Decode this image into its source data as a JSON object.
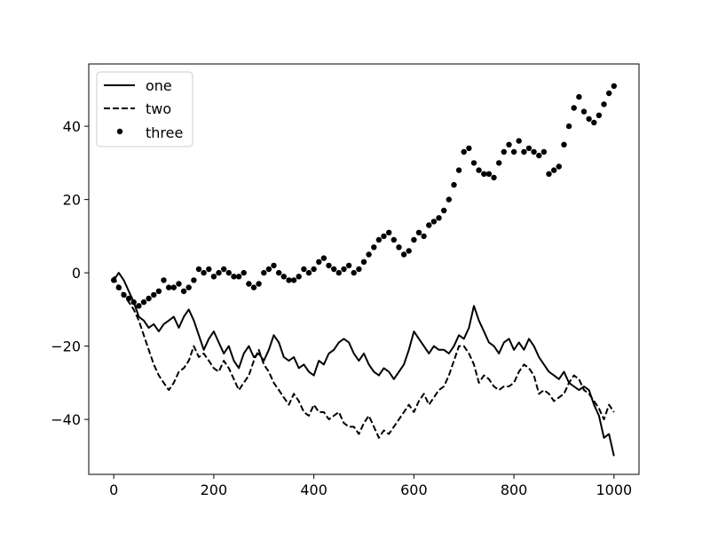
{
  "chart_data": {
    "type": "line",
    "title": "",
    "xlabel": "",
    "ylabel": "",
    "xlim": [
      -50,
      1050
    ],
    "ylim": [
      -55,
      57
    ],
    "x_ticks": [
      0,
      200,
      400,
      600,
      800,
      1000
    ],
    "y_ticks": [
      -40,
      -20,
      0,
      20,
      40
    ],
    "x_tick_labels": [
      "0",
      "200",
      "400",
      "600",
      "800",
      "1000"
    ],
    "y_tick_labels": [
      "−40",
      "−20",
      "0",
      "20",
      "40"
    ],
    "grid": false,
    "legend": {
      "position": "top-left"
    },
    "series": [
      {
        "name": "one",
        "style": "solid",
        "color": "#000000",
        "points": [
          [
            0,
            -2
          ],
          [
            10,
            0
          ],
          [
            20,
            -2
          ],
          [
            30,
            -5
          ],
          [
            40,
            -8
          ],
          [
            50,
            -12
          ],
          [
            60,
            -13
          ],
          [
            70,
            -15
          ],
          [
            80,
            -14
          ],
          [
            90,
            -16
          ],
          [
            100,
            -14
          ],
          [
            110,
            -13
          ],
          [
            120,
            -12
          ],
          [
            130,
            -15
          ],
          [
            140,
            -12
          ],
          [
            150,
            -10
          ],
          [
            160,
            -13
          ],
          [
            170,
            -17
          ],
          [
            180,
            -21
          ],
          [
            190,
            -18
          ],
          [
            200,
            -16
          ],
          [
            210,
            -19
          ],
          [
            220,
            -22
          ],
          [
            230,
            -20
          ],
          [
            240,
            -24
          ],
          [
            250,
            -26
          ],
          [
            260,
            -22
          ],
          [
            270,
            -20
          ],
          [
            280,
            -23
          ],
          [
            290,
            -22
          ],
          [
            300,
            -24
          ],
          [
            310,
            -21
          ],
          [
            320,
            -17
          ],
          [
            330,
            -19
          ],
          [
            340,
            -23
          ],
          [
            350,
            -24
          ],
          [
            360,
            -23
          ],
          [
            370,
            -26
          ],
          [
            380,
            -25
          ],
          [
            390,
            -27
          ],
          [
            400,
            -28
          ],
          [
            410,
            -24
          ],
          [
            420,
            -25
          ],
          [
            430,
            -22
          ],
          [
            440,
            -21
          ],
          [
            450,
            -19
          ],
          [
            460,
            -18
          ],
          [
            470,
            -19
          ],
          [
            480,
            -22
          ],
          [
            490,
            -24
          ],
          [
            500,
            -22
          ],
          [
            510,
            -25
          ],
          [
            520,
            -27
          ],
          [
            530,
            -28
          ],
          [
            540,
            -26
          ],
          [
            550,
            -27
          ],
          [
            560,
            -29
          ],
          [
            570,
            -27
          ],
          [
            580,
            -25
          ],
          [
            590,
            -21
          ],
          [
            600,
            -16
          ],
          [
            610,
            -18
          ],
          [
            620,
            -20
          ],
          [
            630,
            -22
          ],
          [
            640,
            -20
          ],
          [
            650,
            -21
          ],
          [
            660,
            -21
          ],
          [
            670,
            -22
          ],
          [
            680,
            -20
          ],
          [
            690,
            -17
          ],
          [
            700,
            -18
          ],
          [
            710,
            -15
          ],
          [
            720,
            -9
          ],
          [
            730,
            -13
          ],
          [
            740,
            -16
          ],
          [
            750,
            -19
          ],
          [
            760,
            -20
          ],
          [
            770,
            -22
          ],
          [
            780,
            -19
          ],
          [
            790,
            -18
          ],
          [
            800,
            -21
          ],
          [
            810,
            -19
          ],
          [
            820,
            -21
          ],
          [
            830,
            -18
          ],
          [
            840,
            -20
          ],
          [
            850,
            -23
          ],
          [
            860,
            -25
          ],
          [
            870,
            -27
          ],
          [
            880,
            -28
          ],
          [
            890,
            -29
          ],
          [
            900,
            -27
          ],
          [
            910,
            -30
          ],
          [
            920,
            -31
          ],
          [
            930,
            -32
          ],
          [
            940,
            -31
          ],
          [
            950,
            -32
          ],
          [
            960,
            -36
          ],
          [
            970,
            -39
          ],
          [
            980,
            -45
          ],
          [
            990,
            -44
          ],
          [
            1000,
            -50
          ]
        ]
      },
      {
        "name": "two",
        "style": "dashed",
        "color": "#000000",
        "points": [
          [
            0,
            -1
          ],
          [
            10,
            -4
          ],
          [
            20,
            -6
          ],
          [
            30,
            -8
          ],
          [
            40,
            -10
          ],
          [
            50,
            -13
          ],
          [
            60,
            -17
          ],
          [
            70,
            -21
          ],
          [
            80,
            -25
          ],
          [
            90,
            -28
          ],
          [
            100,
            -30
          ],
          [
            110,
            -32
          ],
          [
            120,
            -30
          ],
          [
            130,
            -27
          ],
          [
            140,
            -26
          ],
          [
            150,
            -24
          ],
          [
            160,
            -20
          ],
          [
            170,
            -23
          ],
          [
            180,
            -22
          ],
          [
            190,
            -24
          ],
          [
            200,
            -26
          ],
          [
            210,
            -27
          ],
          [
            220,
            -24
          ],
          [
            230,
            -26
          ],
          [
            240,
            -29
          ],
          [
            250,
            -32
          ],
          [
            260,
            -30
          ],
          [
            270,
            -28
          ],
          [
            280,
            -24
          ],
          [
            290,
            -21
          ],
          [
            300,
            -25
          ],
          [
            310,
            -27
          ],
          [
            320,
            -30
          ],
          [
            330,
            -32
          ],
          [
            340,
            -34
          ],
          [
            350,
            -36
          ],
          [
            360,
            -33
          ],
          [
            370,
            -35
          ],
          [
            380,
            -38
          ],
          [
            390,
            -39
          ],
          [
            400,
            -36
          ],
          [
            410,
            -38
          ],
          [
            420,
            -38
          ],
          [
            430,
            -40
          ],
          [
            440,
            -39
          ],
          [
            450,
            -38
          ],
          [
            460,
            -41
          ],
          [
            470,
            -42
          ],
          [
            480,
            -42
          ],
          [
            490,
            -44
          ],
          [
            500,
            -41
          ],
          [
            510,
            -39
          ],
          [
            520,
            -42
          ],
          [
            530,
            -45
          ],
          [
            540,
            -43
          ],
          [
            550,
            -44
          ],
          [
            560,
            -42
          ],
          [
            570,
            -40
          ],
          [
            580,
            -38
          ],
          [
            590,
            -36
          ],
          [
            600,
            -38
          ],
          [
            610,
            -35
          ],
          [
            620,
            -33
          ],
          [
            630,
            -36
          ],
          [
            640,
            -34
          ],
          [
            650,
            -32
          ],
          [
            660,
            -31
          ],
          [
            670,
            -28
          ],
          [
            680,
            -24
          ],
          [
            690,
            -20
          ],
          [
            700,
            -20
          ],
          [
            710,
            -22
          ],
          [
            720,
            -25
          ],
          [
            730,
            -30
          ],
          [
            740,
            -28
          ],
          [
            750,
            -29
          ],
          [
            760,
            -31
          ],
          [
            770,
            -32
          ],
          [
            780,
            -31
          ],
          [
            790,
            -31
          ],
          [
            800,
            -30
          ],
          [
            810,
            -27
          ],
          [
            820,
            -25
          ],
          [
            830,
            -26
          ],
          [
            840,
            -28
          ],
          [
            850,
            -33
          ],
          [
            860,
            -32
          ],
          [
            870,
            -33
          ],
          [
            880,
            -35
          ],
          [
            890,
            -34
          ],
          [
            900,
            -33
          ],
          [
            910,
            -30
          ],
          [
            920,
            -28
          ],
          [
            930,
            -29
          ],
          [
            940,
            -32
          ],
          [
            950,
            -33
          ],
          [
            960,
            -35
          ],
          [
            970,
            -37
          ],
          [
            980,
            -40
          ],
          [
            990,
            -36
          ],
          [
            1000,
            -38
          ]
        ]
      },
      {
        "name": "three",
        "style": "dots",
        "color": "#000000",
        "points": [
          [
            0,
            -2
          ],
          [
            10,
            -4
          ],
          [
            20,
            -6
          ],
          [
            30,
            -7
          ],
          [
            40,
            -8
          ],
          [
            50,
            -9
          ],
          [
            60,
            -8
          ],
          [
            70,
            -7
          ],
          [
            80,
            -6
          ],
          [
            90,
            -5
          ],
          [
            100,
            -2
          ],
          [
            110,
            -4
          ],
          [
            120,
            -4
          ],
          [
            130,
            -3
          ],
          [
            140,
            -5
          ],
          [
            150,
            -4
          ],
          [
            160,
            -2
          ],
          [
            170,
            1
          ],
          [
            180,
            0
          ],
          [
            190,
            1
          ],
          [
            200,
            -1
          ],
          [
            210,
            0
          ],
          [
            220,
            1
          ],
          [
            230,
            0
          ],
          [
            240,
            -1
          ],
          [
            250,
            -1
          ],
          [
            260,
            0
          ],
          [
            270,
            -3
          ],
          [
            280,
            -4
          ],
          [
            290,
            -3
          ],
          [
            300,
            0
          ],
          [
            310,
            1
          ],
          [
            320,
            2
          ],
          [
            330,
            0
          ],
          [
            340,
            -1
          ],
          [
            350,
            -2
          ],
          [
            360,
            -2
          ],
          [
            370,
            -1
          ],
          [
            380,
            1
          ],
          [
            390,
            0
          ],
          [
            400,
            1
          ],
          [
            410,
            3
          ],
          [
            420,
            4
          ],
          [
            430,
            2
          ],
          [
            440,
            1
          ],
          [
            450,
            0
          ],
          [
            460,
            1
          ],
          [
            470,
            2
          ],
          [
            480,
            0
          ],
          [
            490,
            1
          ],
          [
            500,
            3
          ],
          [
            510,
            5
          ],
          [
            520,
            7
          ],
          [
            530,
            9
          ],
          [
            540,
            10
          ],
          [
            550,
            11
          ],
          [
            560,
            9
          ],
          [
            570,
            7
          ],
          [
            580,
            5
          ],
          [
            590,
            6
          ],
          [
            600,
            9
          ],
          [
            610,
            11
          ],
          [
            620,
            10
          ],
          [
            630,
            13
          ],
          [
            640,
            14
          ],
          [
            650,
            15
          ],
          [
            660,
            17
          ],
          [
            670,
            20
          ],
          [
            680,
            24
          ],
          [
            690,
            28
          ],
          [
            700,
            33
          ],
          [
            710,
            34
          ],
          [
            720,
            30
          ],
          [
            730,
            28
          ],
          [
            740,
            27
          ],
          [
            750,
            27
          ],
          [
            760,
            26
          ],
          [
            770,
            30
          ],
          [
            780,
            33
          ],
          [
            790,
            35
          ],
          [
            800,
            33
          ],
          [
            810,
            36
          ],
          [
            820,
            33
          ],
          [
            830,
            34
          ],
          [
            840,
            33
          ],
          [
            850,
            32
          ],
          [
            860,
            33
          ],
          [
            870,
            27
          ],
          [
            880,
            28
          ],
          [
            890,
            29
          ],
          [
            900,
            35
          ],
          [
            910,
            40
          ],
          [
            920,
            45
          ],
          [
            930,
            48
          ],
          [
            940,
            44
          ],
          [
            950,
            42
          ],
          [
            960,
            41
          ],
          [
            970,
            43
          ],
          [
            980,
            46
          ],
          [
            990,
            49
          ],
          [
            1000,
            51
          ]
        ]
      }
    ]
  }
}
